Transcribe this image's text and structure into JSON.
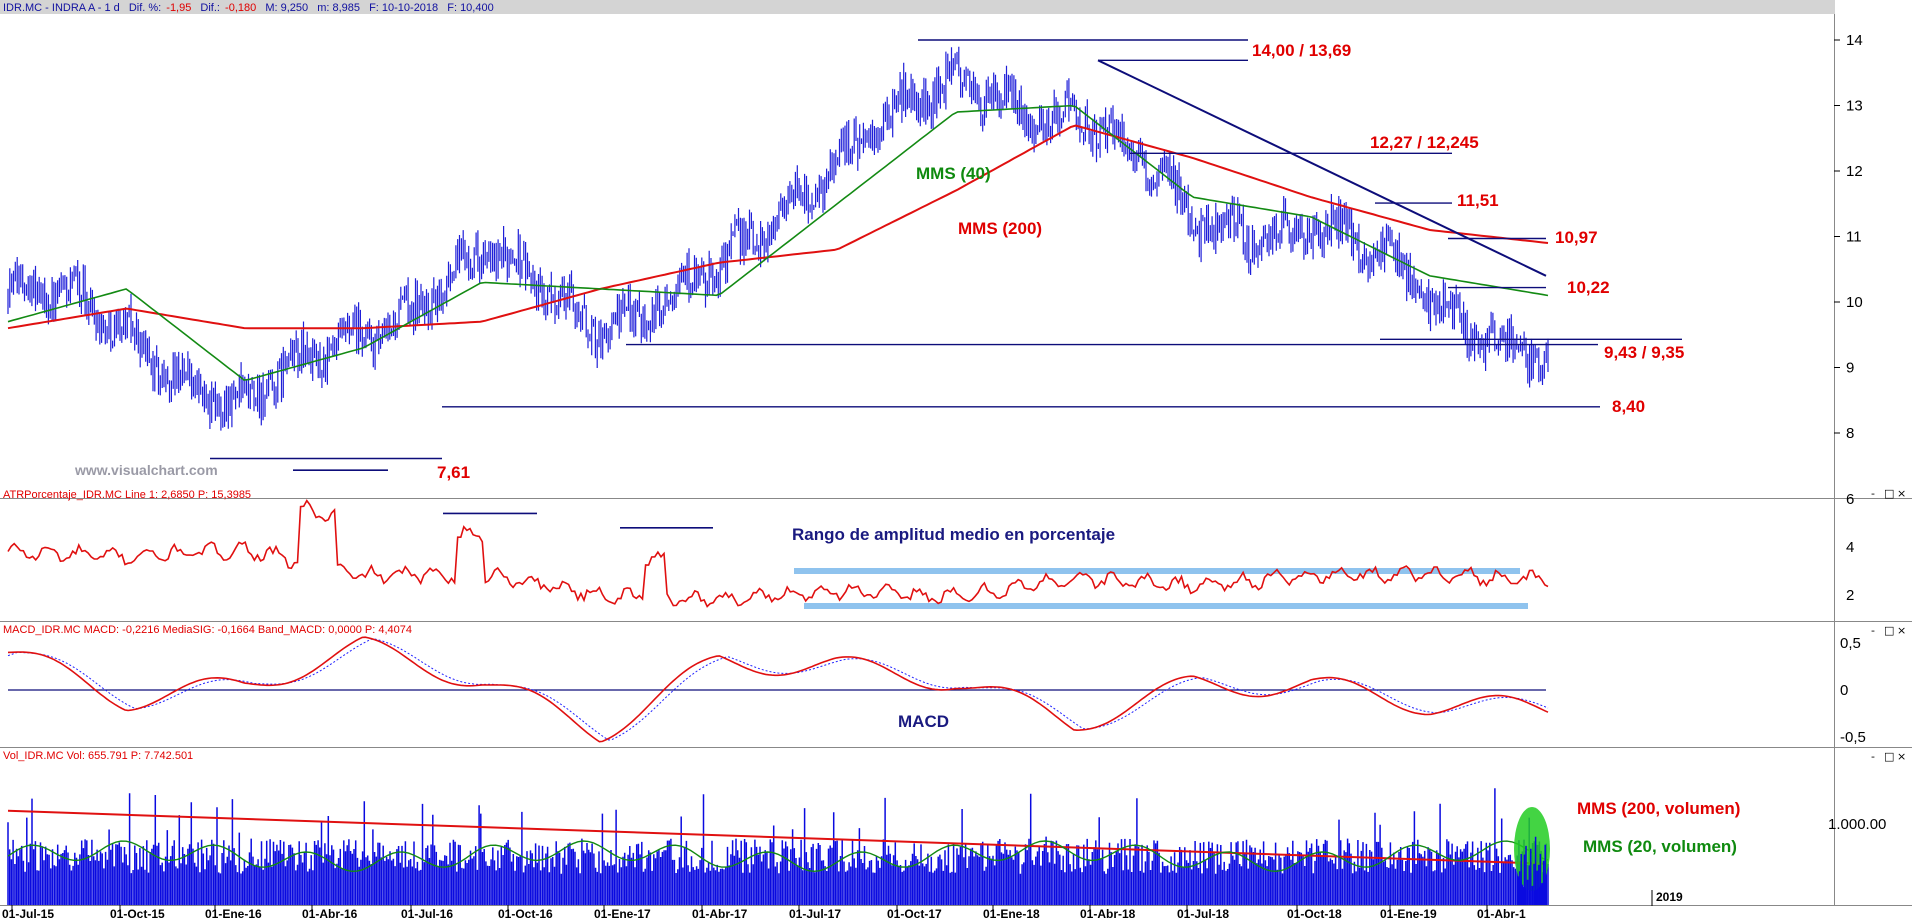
{
  "colors": {
    "price": "#1f1fd8",
    "mms40": "#138a13",
    "mms200": "#e01010",
    "lines": "#0d0d7a",
    "atr": "#e01010",
    "band": "#8fc3ee",
    "macd": "#e01010",
    "signal": "#2020ff",
    "volume": "#0a0ae0",
    "annot_red": "#e00000",
    "annot_green": "#0f8a0f",
    "annot_navy": "#1a1a80",
    "header_bg": "#d4d4d4",
    "panel_border": "#888888",
    "header_text": "#1010a0",
    "header_neg": "#e00000",
    "watermark": "#9a9aa6",
    "highlight": "#22cc22"
  },
  "header": {
    "symbol": "IDR.MC - INDRA A - 1 d",
    "dif_pct_label": "Dif. %:",
    "dif_pct": "-1,95",
    "dif_label": "Dif.:",
    "dif": "-0,180",
    "max": "M: 9,250",
    "min": "m: 8,985",
    "date": "F: 10-10-2018",
    "close": "F: 10,400"
  },
  "panels": {
    "atr": {
      "title": "ATRPorcentaje_IDR.MC  Line 1: 2,6850  P: 15,3985",
      "ticks": [
        "6",
        "4",
        "2"
      ]
    },
    "macd": {
      "title": "MACD_IDR.MC  MACD: -0,2216  MediaSIG: -0,1664  Band_MACD: 0,0000  P: 4,4074",
      "ticks": [
        "0,5",
        "0",
        "-0,5"
      ]
    },
    "volume": {
      "title": "Vol_IDR.MC  Vol: 655.791  P: 7.742.501",
      "ticks": [
        "1.000.00"
      ]
    }
  },
  "window_buttons": [
    "-",
    "□",
    "×"
  ],
  "price_ticks": [
    "14",
    "13",
    "12",
    "11",
    "10",
    "9",
    "8"
  ],
  "date_axis": [
    "01-Jul-15",
    "01-Oct-15",
    "01-Ene-16",
    "01-Abr-16",
    "01-Jul-16",
    "01-Oct-16",
    "01-Ene-17",
    "01-Abr-17",
    "01-Jul-17",
    "01-Oct-17",
    "01-Ene-18",
    "01-Abr-18",
    "01-Jul-18",
    "01-Oct-18",
    "01-Ene-19",
    "01-Abr-1"
  ],
  "year_marker": "2019",
  "annotations": {
    "a14": "14,00 / 13,69",
    "a1227": "12,27 / 12,245",
    "a1151": "11,51",
    "a1097": "10,97",
    "a1022": "10,22",
    "a943": "9,43 / 9,35",
    "a840": "8,40",
    "a761": "7,61",
    "mms40": "MMS (40)",
    "mms200": "MMS (200)",
    "atr_title": "Rango de amplitud medio en porcentaje",
    "macd": "MACD",
    "vol200": "MMS (200, volumen)",
    "vol20": "MMS (20, volumen)",
    "watermark": "www.visualchart.com"
  },
  "chart_data": {
    "type": "line",
    "title": "IDR.MC - INDRA A - 1 d",
    "x": [
      "01-Jul-15",
      "01-Oct-15",
      "01-Ene-16",
      "01-Abr-16",
      "01-Jul-16",
      "01-Oct-16",
      "01-Ene-17",
      "01-Abr-17",
      "01-Jul-17",
      "01-Oct-17",
      "01-Ene-18",
      "01-Abr-18",
      "01-Jul-18",
      "01-Oct-18"
    ],
    "ylim": [
      7.2,
      14.3
    ],
    "series": [
      {
        "name": "",
        "values": [
          10.2,
          9.6,
          8.3,
          9.6,
          10.6,
          9.8,
          10.3,
          12.4,
          13.2,
          13.0,
          11.2,
          11.2,
          10.1,
          9.1
        ]
      },
      {
        "name": "MMS (40)",
        "values": [
          9.7,
          10.2,
          8.8,
          9.3,
          10.3,
          10.2,
          10.1,
          11.5,
          12.9,
          13.0,
          11.6,
          11.3,
          10.4,
          10.1
        ]
      },
      {
        "name": "MMS (200)",
        "values": [
          9.6,
          9.9,
          9.6,
          9.6,
          9.7,
          10.2,
          10.6,
          10.8,
          11.7,
          12.7,
          12.2,
          11.6,
          11.1,
          10.9
        ]
      }
    ],
    "levels": [
      14.0,
      13.69,
      12.27,
      12.245,
      11.51,
      10.97,
      10.22,
      9.43,
      9.35,
      8.4,
      7.61
    ],
    "indicators": {
      "atr_pct": {
        "x": [
          "01-Jul-15",
          "01-Oct-15",
          "01-Ene-16",
          "01-Abr-16",
          "01-Jul-16",
          "01-Oct-16",
          "01-Ene-17",
          "01-Abr-17",
          "01-Jul-17",
          "01-Oct-17",
          "01-Ene-18",
          "01-Abr-18",
          "01-Jul-18",
          "01-Oct-18"
        ],
        "values": [
          3.8,
          3.6,
          3.9,
          2.8,
          2.9,
          2.0,
          1.8,
          2.2,
          1.9,
          2.7,
          2.4,
          2.8,
          2.9,
          2.6
        ],
        "ylim": [
          1,
          6
        ]
      },
      "macd": {
        "x": [
          "01-Jul-15",
          "01-Oct-15",
          "01-Ene-16",
          "01-Abr-16",
          "01-Jul-16",
          "01-Oct-16",
          "01-Ene-17",
          "01-Abr-17",
          "01-Jul-17",
          "01-Oct-17",
          "01-Ene-18",
          "01-Abr-18",
          "01-Jul-18",
          "01-Oct-18"
        ],
        "values": [
          0.4,
          -0.1,
          0.05,
          0.45,
          0.1,
          -0.45,
          0.3,
          0.25,
          0.1,
          -0.35,
          0.05,
          0.05,
          -0.15,
          -0.2
        ],
        "ylim": [
          -0.6,
          0.55
        ]
      },
      "volume_mms200": {
        "start": 1550000,
        "end": 500000
      }
    }
  }
}
